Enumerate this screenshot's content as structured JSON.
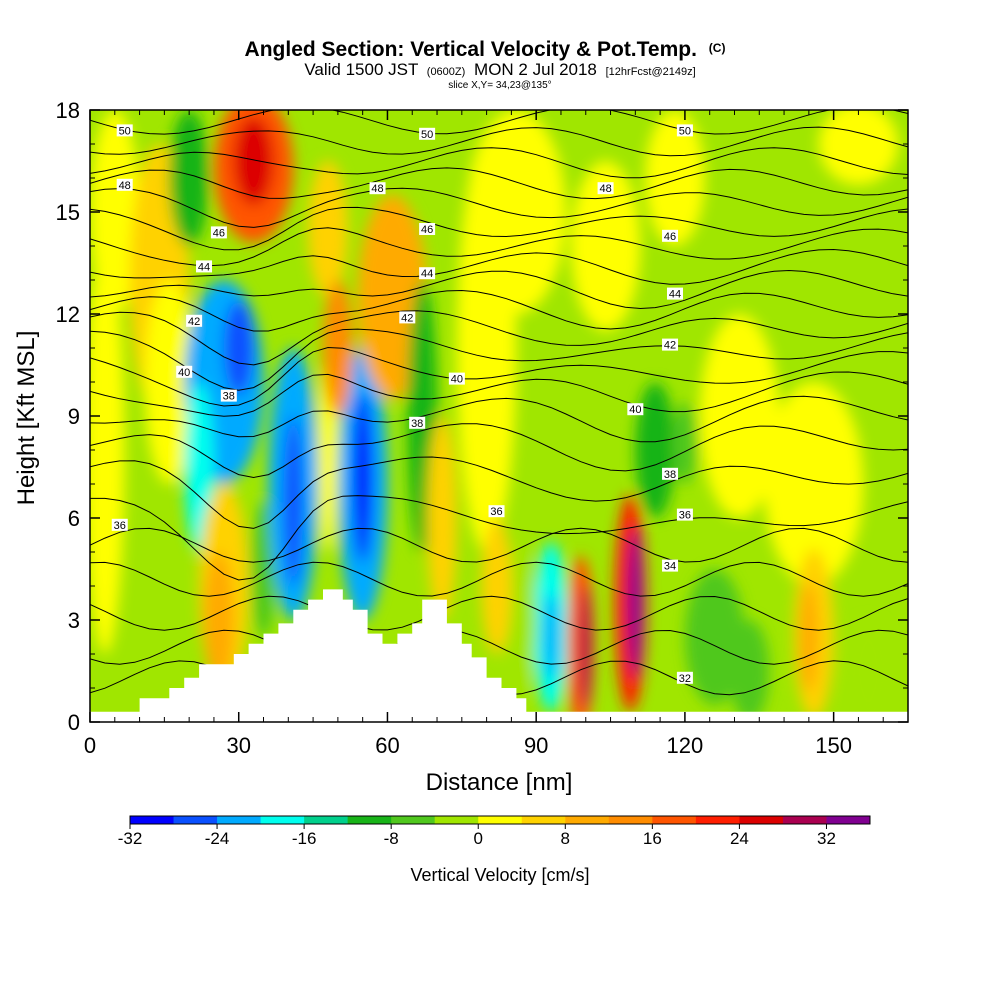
{
  "chart_data": {
    "type": "heatmap",
    "title": "Angled Section: Vertical Velocity & Pot.Temp.",
    "title_suffix": "(C)",
    "subtitle": {
      "valid": "Valid 1500 JST",
      "utc": "(0600Z)",
      "date": "MON 2 Jul 2018",
      "fcst": "[12hrFcst@2149z]"
    },
    "slice_label": "slice X,Y= 34,23@135°",
    "xlabel": "Distance [nm]",
    "ylabel": "Height [Kft MSL]",
    "xlim": [
      0,
      165
    ],
    "ylim": [
      0,
      18
    ],
    "x_ticks": [
      0,
      30,
      60,
      90,
      120,
      150
    ],
    "y_ticks": [
      0,
      3,
      6,
      9,
      12,
      15,
      18
    ],
    "colorbar": {
      "label": "Vertical Velocity [cm/s]",
      "tick_labels": [
        "-32",
        "-24",
        "-16",
        "-8",
        "0",
        "8",
        "16",
        "24",
        "32"
      ],
      "colors": [
        "#0000ff",
        "#0a50ff",
        "#00aaff",
        "#00ffee",
        "#00d08c",
        "#18b418",
        "#50c81e",
        "#a0e600",
        "#ffff00",
        "#ffd200",
        "#ffaa00",
        "#ff8c00",
        "#ff5500",
        "#ff1e00",
        "#dc0000",
        "#aa0050",
        "#800090"
      ]
    },
    "contour_field": "Potential Temperature (°C)",
    "contour_labels": [
      {
        "text": "50",
        "x": 7,
        "y": 17.4
      },
      {
        "text": "50",
        "x": 68,
        "y": 17.3
      },
      {
        "text": "50",
        "x": 120,
        "y": 17.4
      },
      {
        "text": "48",
        "x": 7,
        "y": 15.8
      },
      {
        "text": "48",
        "x": 58,
        "y": 15.7
      },
      {
        "text": "48",
        "x": 104,
        "y": 15.7
      },
      {
        "text": "46",
        "x": 26,
        "y": 14.4
      },
      {
        "text": "46",
        "x": 68,
        "y": 14.5
      },
      {
        "text": "46",
        "x": 117,
        "y": 14.3
      },
      {
        "text": "44",
        "x": 23,
        "y": 13.4
      },
      {
        "text": "44",
        "x": 68,
        "y": 13.2
      },
      {
        "text": "44",
        "x": 118,
        "y": 12.6
      },
      {
        "text": "42",
        "x": 21,
        "y": 11.8
      },
      {
        "text": "42",
        "x": 64,
        "y": 11.9
      },
      {
        "text": "42",
        "x": 117,
        "y": 11.1
      },
      {
        "text": "40",
        "x": 19,
        "y": 10.3
      },
      {
        "text": "40",
        "x": 74,
        "y": 10.1
      },
      {
        "text": "40",
        "x": 110,
        "y": 9.2
      },
      {
        "text": "38",
        "x": 28,
        "y": 9.6
      },
      {
        "text": "38",
        "x": 66,
        "y": 8.8
      },
      {
        "text": "38",
        "x": 117,
        "y": 7.3
      },
      {
        "text": "36",
        "x": 6,
        "y": 5.8
      },
      {
        "text": "36",
        "x": 82,
        "y": 6.2
      },
      {
        "text": "36",
        "x": 120,
        "y": 6.1
      },
      {
        "text": "34",
        "x": 117,
        "y": 4.6
      },
      {
        "text": "32",
        "x": 120,
        "y": 1.3
      }
    ]
  }
}
